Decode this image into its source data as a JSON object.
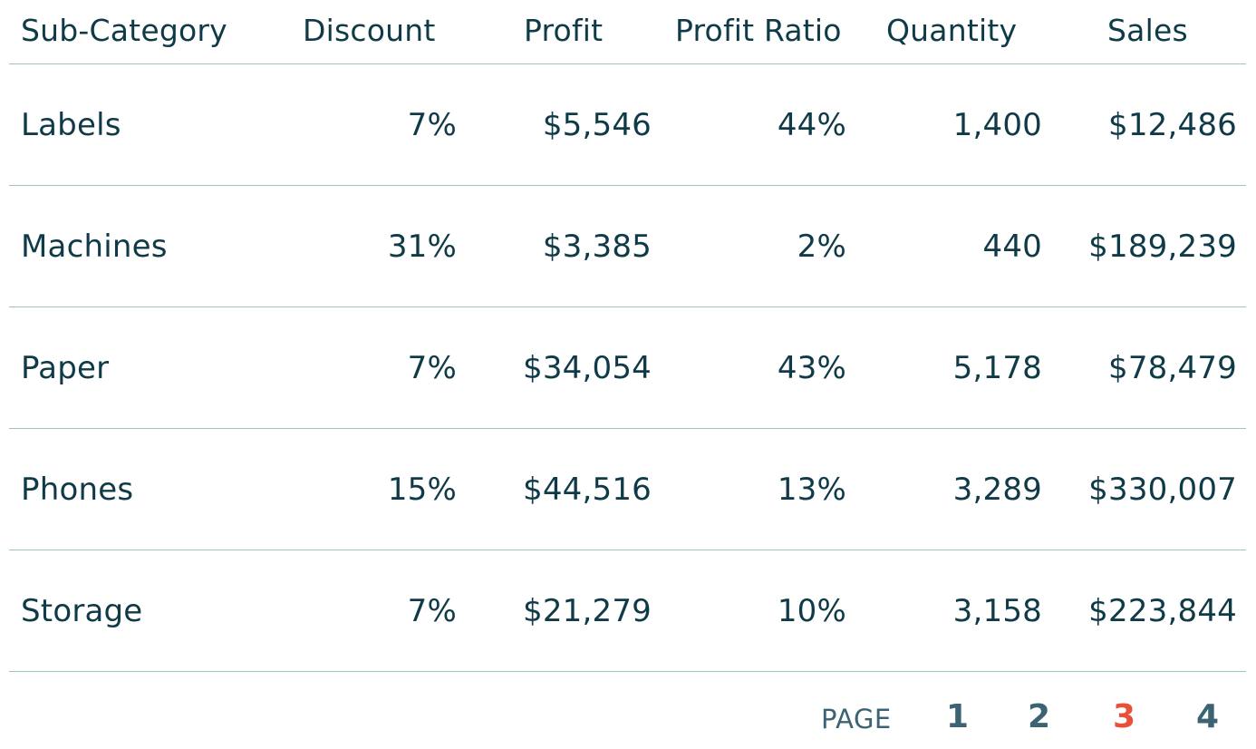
{
  "table": {
    "headers": {
      "name": "Sub-Category",
      "discount": "Discount",
      "profit": "Profit",
      "ratio": "Profit Ratio",
      "qty": "Quantity",
      "sales": "Sales"
    },
    "rows": [
      {
        "name": "Labels",
        "discount": "7%",
        "profit": "$5,546",
        "ratio": "44%",
        "qty": "1,400",
        "sales": "$12,486"
      },
      {
        "name": "Machines",
        "discount": "31%",
        "profit": "$3,385",
        "ratio": "2%",
        "qty": "440",
        "sales": "$189,239"
      },
      {
        "name": "Paper",
        "discount": "7%",
        "profit": "$34,054",
        "ratio": "43%",
        "qty": "5,178",
        "sales": "$78,479"
      },
      {
        "name": "Phones",
        "discount": "15%",
        "profit": "$44,516",
        "ratio": "13%",
        "qty": "3,289",
        "sales": "$330,007"
      },
      {
        "name": "Storage",
        "discount": "7%",
        "profit": "$21,279",
        "ratio": "10%",
        "qty": "3,158",
        "sales": "$223,844"
      }
    ]
  },
  "pager": {
    "label": "PAGE",
    "pages": [
      "1",
      "2",
      "3",
      "4"
    ],
    "current": "3",
    "current_color": "#e8503a",
    "color": "#3b6373"
  },
  "colors": {
    "text": "#0f3a47",
    "divider": "#9cc4c4"
  }
}
